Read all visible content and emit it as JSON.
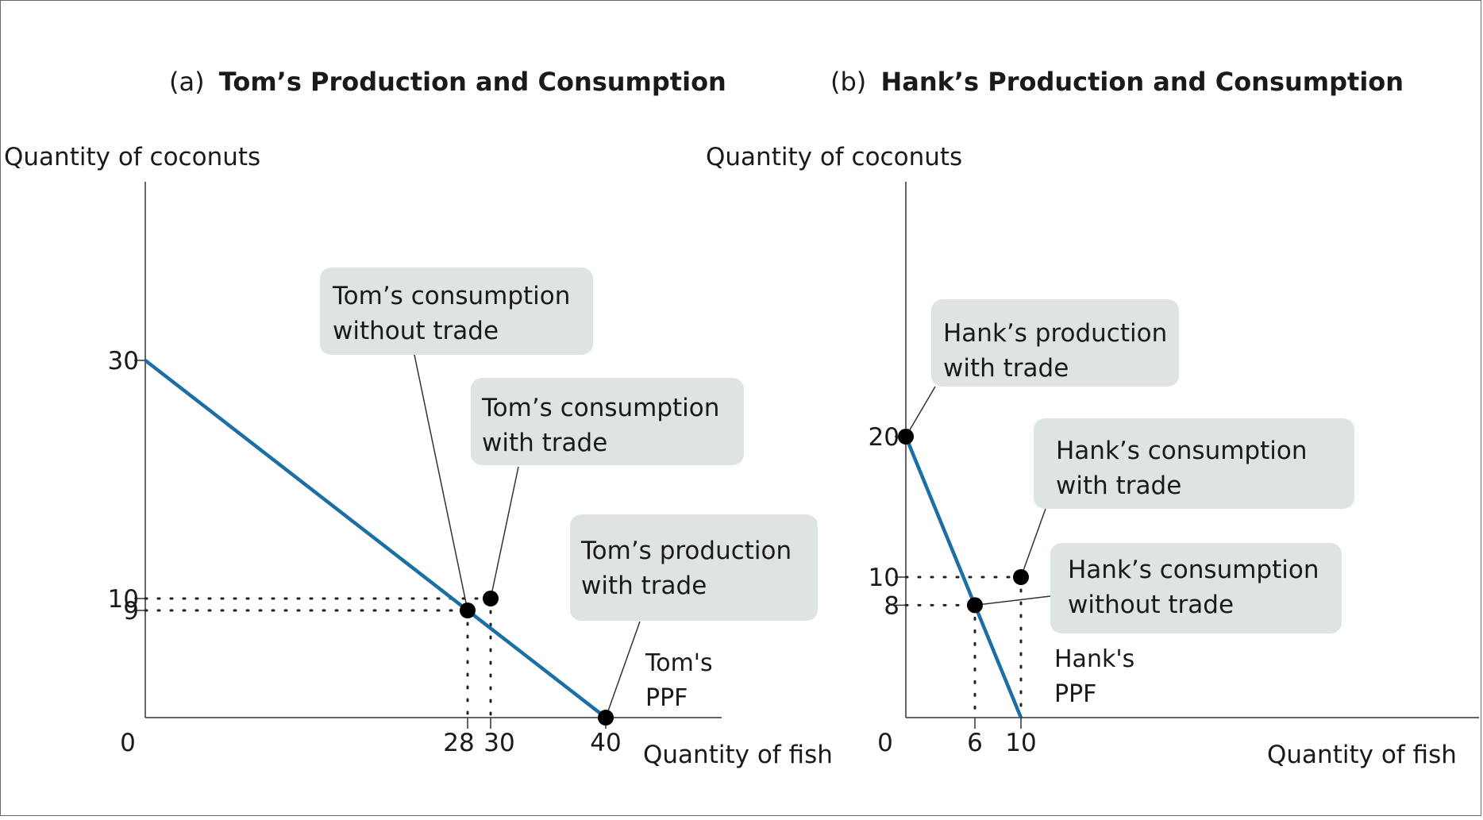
{
  "chart_data": [
    {
      "type": "line",
      "panel_prefix": "(a)",
      "title": "Tom’s Production and Consumption",
      "ylabel": "Quantity of coconuts",
      "xlabel": "Quantity of fish",
      "origin_label": "0",
      "xlim": [
        0,
        50
      ],
      "ylim": [
        0,
        37
      ],
      "x_ticks": [
        {
          "value": 28,
          "label": "28"
        },
        {
          "value": 30,
          "label": "30"
        },
        {
          "value": 40,
          "label": "40"
        }
      ],
      "y_ticks": [
        {
          "value": 30,
          "label": "30"
        },
        {
          "value": 10,
          "label": "10"
        },
        {
          "value": 9,
          "label": "9"
        }
      ],
      "ppf": {
        "x": [
          0,
          40
        ],
        "y": [
          30,
          0
        ],
        "label_lines": [
          "Tom's",
          "PPF"
        ],
        "color": "#1c6fa5"
      },
      "points": [
        {
          "id": "consumption_without_trade",
          "x": 28,
          "y": 9,
          "guides": true,
          "callout": [
            "Tom’s consumption",
            "without trade"
          ]
        },
        {
          "id": "consumption_with_trade",
          "x": 30,
          "y": 10,
          "guides": true,
          "callout": [
            "Tom’s consumption",
            "with trade"
          ]
        },
        {
          "id": "production_with_trade",
          "x": 40,
          "y": 0,
          "guides": false,
          "callout": [
            "Tom’s production",
            "with trade"
          ]
        }
      ]
    },
    {
      "type": "line",
      "panel_prefix": "(b)",
      "title": "Hank’s Production and Consumption",
      "ylabel": "Quantity of coconuts",
      "xlabel": "Quantity of fish",
      "origin_label": "0",
      "xlim": [
        0,
        50
      ],
      "ylim": [
        0,
        37
      ],
      "x_ticks": [
        {
          "value": 6,
          "label": "6"
        },
        {
          "value": 10,
          "label": "10"
        }
      ],
      "y_ticks": [
        {
          "value": 20,
          "label": "20"
        },
        {
          "value": 10,
          "label": "10"
        },
        {
          "value": 8,
          "label": "8"
        }
      ],
      "ppf": {
        "x": [
          0,
          10
        ],
        "y": [
          20,
          0
        ],
        "label_lines": [
          "Hank's",
          "PPF"
        ],
        "color": "#1c6fa5"
      },
      "points": [
        {
          "id": "production_with_trade",
          "x": 0,
          "y": 20,
          "guides": false,
          "callout": [
            "Hank’s production",
            "with trade"
          ]
        },
        {
          "id": "consumption_with_trade",
          "x": 10,
          "y": 10,
          "guides": true,
          "callout": [
            "Hank’s consumption",
            "with trade"
          ]
        },
        {
          "id": "consumption_without_trade",
          "x": 6,
          "y": 8,
          "guides": true,
          "callout": [
            "Hank’s consumption",
            "without trade"
          ]
        }
      ]
    }
  ]
}
